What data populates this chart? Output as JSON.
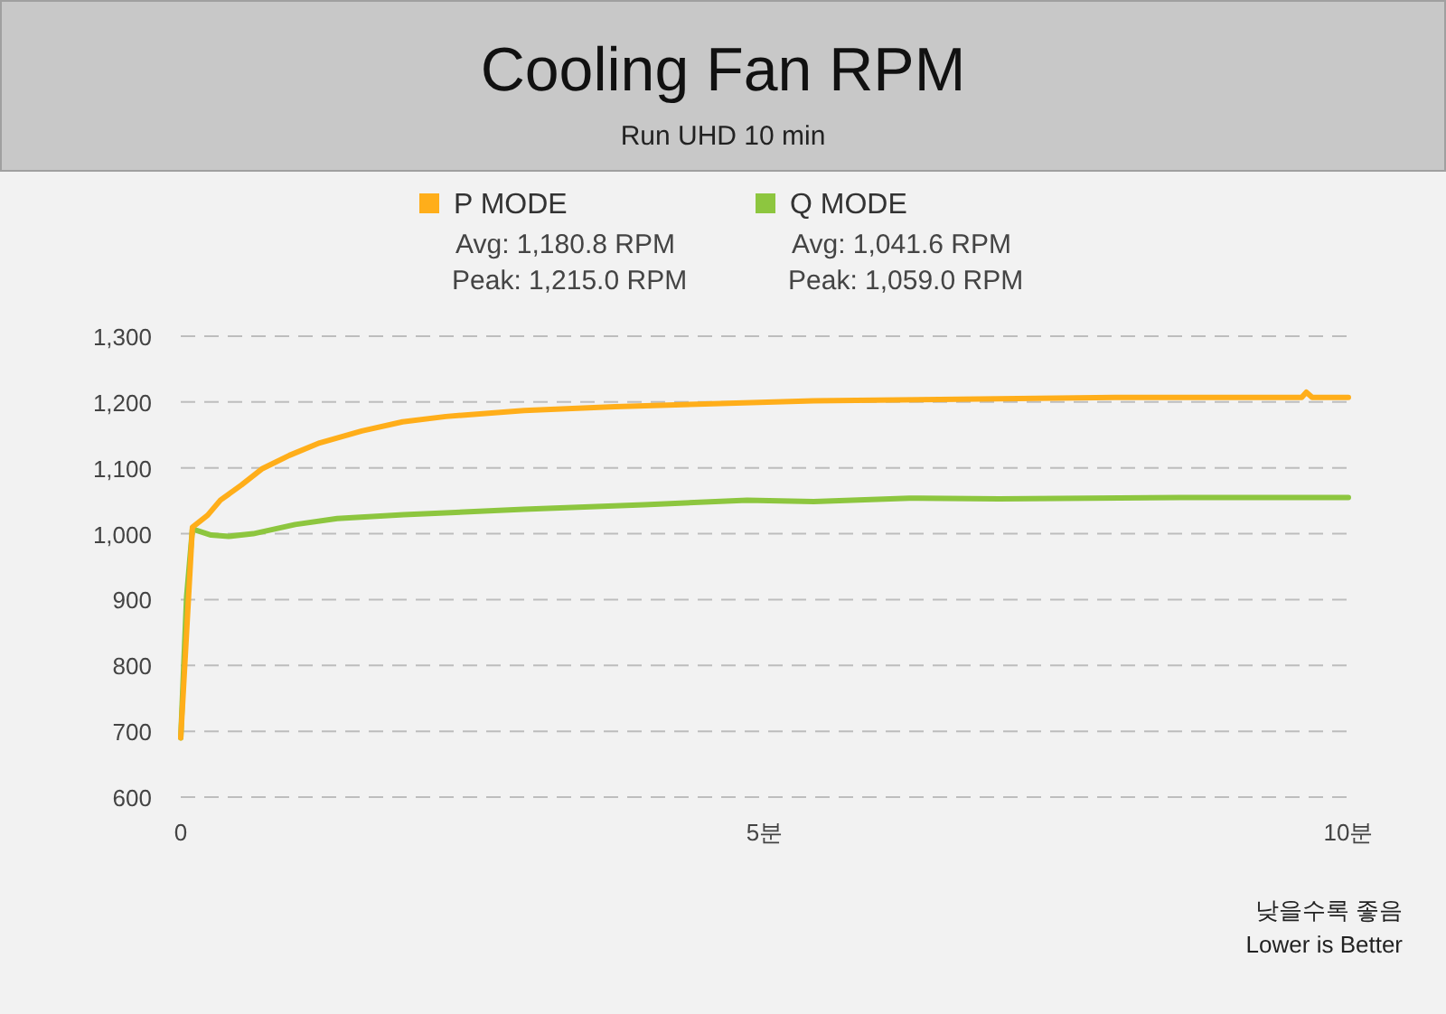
{
  "chart_data": {
    "type": "line",
    "title": "Cooling Fan RPM",
    "subtitle": "Run UHD 10 min",
    "xlim": [
      0,
      10
    ],
    "xticks": [
      0,
      {
        "value": 5,
        "label": "5분"
      },
      {
        "value": 10,
        "label": "10분"
      }
    ],
    "ylim": [
      600,
      1300
    ],
    "yticks": [
      {
        "value": 600,
        "label": "600"
      },
      {
        "value": 700,
        "label": "700"
      },
      {
        "value": 800,
        "label": "800"
      },
      {
        "value": 900,
        "label": "900"
      },
      {
        "value": 1000,
        "label": "1,000"
      },
      {
        "value": 1100,
        "label": "1,100"
      },
      {
        "value": 1200,
        "label": "1,200"
      },
      {
        "value": 1300,
        "label": "1,300"
      }
    ],
    "grid": "y",
    "legend": "top",
    "line_style": "solid",
    "series": [
      {
        "name": "P MODE",
        "color": "#ffae1a",
        "x": [
          0,
          0.1,
          0.23,
          0.34,
          0.52,
          0.7,
          0.93,
          1.19,
          1.55,
          1.9,
          2.27,
          2.94,
          3.72,
          4.49,
          5.42,
          6.5,
          8.0,
          9.6,
          9.64,
          9.69,
          10.0
        ],
        "values": [
          690,
          1010,
          1028,
          1051,
          1074,
          1099,
          1119,
          1138,
          1156,
          1170,
          1178,
          1187,
          1193,
          1197,
          1202,
          1204,
          1207,
          1207,
          1215,
          1207,
          1207
        ]
      },
      {
        "name": "Q MODE",
        "color": "#8dc63f",
        "x": [
          0,
          0.05,
          0.1,
          0.26,
          0.41,
          0.62,
          0.98,
          1.34,
          1.91,
          2.94,
          3.97,
          4.85,
          5.42,
          6.24,
          7.01,
          8.56,
          10.0
        ],
        "values": [
          690,
          904,
          1007,
          998,
          996,
          1000,
          1014,
          1023,
          1029,
          1037,
          1044,
          1051,
          1049,
          1054,
          1053,
          1055,
          1055
        ]
      }
    ],
    "annotations": [
      "Avg: 1,180.8 RPM",
      "Peak: 1,215.0 RPM",
      "Avg: 1,041.6 RPM",
      "Peak: 1,059.0 RPM",
      "낮을수록 좋음",
      "Lower is Better"
    ]
  }
}
